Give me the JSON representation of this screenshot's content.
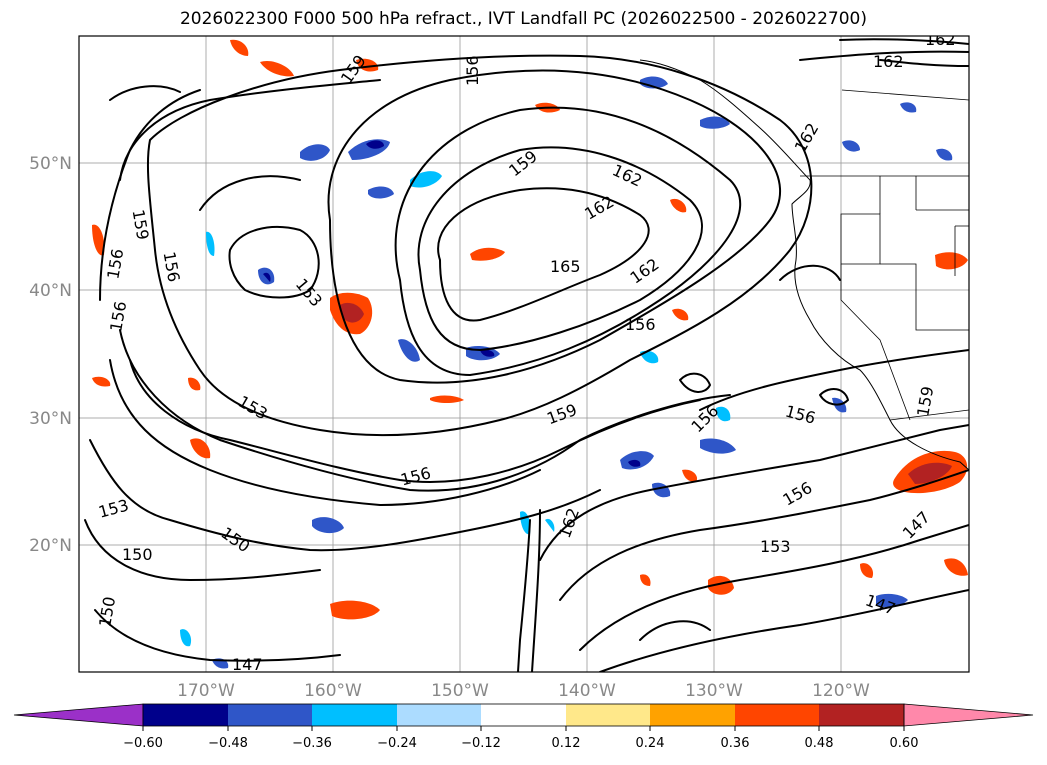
{
  "title": "2026022300 F000 500 hPa refract., IVT Landfall PC (2026022500 - 2026022700)",
  "map_extent": {
    "lon": [
      -180,
      -110
    ],
    "lat": [
      10,
      60
    ]
  },
  "grid": {
    "lons": [
      -170,
      -160,
      -150,
      -140,
      -130,
      -120
    ],
    "lats": [
      20,
      30,
      40,
      50
    ]
  },
  "lon_labels": [
    "170°W",
    "160°W",
    "150°W",
    "140°W",
    "130°W",
    "120°W"
  ],
  "lat_labels": [
    "20°N",
    "30°N",
    "40°N",
    "50°N"
  ],
  "contour_labels": [
    "162",
    "162",
    "156",
    "159",
    "159",
    "162",
    "162",
    "162",
    "159",
    "156",
    "165",
    "162",
    "153",
    "156",
    "156",
    "153",
    "156",
    "156",
    "159",
    "156",
    "159",
    "162",
    "153",
    "150",
    "150",
    "156",
    "153",
    "147",
    "147",
    "147",
    "150",
    "156"
  ],
  "colorbar": {
    "colors": [
      "#9b30c8",
      "#00008b",
      "#2f56c8",
      "#00bfff",
      "#acdcff",
      "#ffffff",
      "#ffe88a",
      "#ffa200",
      "#ff4500",
      "#b22222",
      "#ff88aa"
    ],
    "ticks": [
      "−0.60",
      "−0.48",
      "−0.36",
      "−0.24",
      "−0.12",
      "0.12",
      "0.24",
      "0.36",
      "0.48",
      "0.60"
    ],
    "extend": "both"
  }
}
